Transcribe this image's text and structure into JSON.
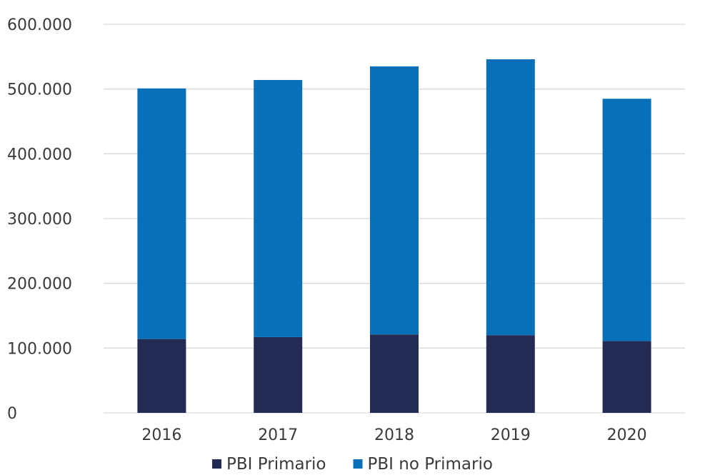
{
  "chart_data": {
    "type": "bar",
    "stacked": true,
    "title": "",
    "xlabel": "",
    "ylabel": "",
    "categories": [
      "2016",
      "2017",
      "2018",
      "2019",
      "2020"
    ],
    "ylim": [
      0,
      600000
    ],
    "yticks": [
      0,
      100000,
      200000,
      300000,
      400000,
      500000,
      600000
    ],
    "ytick_labels": [
      "0",
      "100.000",
      "200.000",
      "300.000",
      "400.000",
      "500.000",
      "600.000"
    ],
    "grid": true,
    "legend_position": "bottom",
    "series": [
      {
        "name": "PBI Primario",
        "color": "#232b55",
        "values": [
          114000,
          117000,
          121000,
          120000,
          111000
        ]
      },
      {
        "name": "PBI no Primario",
        "color": "#0870b8",
        "values": [
          387000,
          397000,
          414000,
          426000,
          374000
        ]
      }
    ]
  }
}
